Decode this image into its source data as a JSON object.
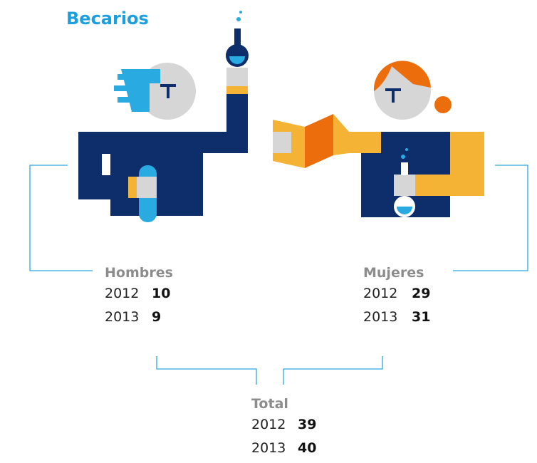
{
  "title": "Becarios",
  "groups": [
    {
      "label": "Hombres",
      "rows": [
        [
          "2012",
          10
        ],
        [
          "2013",
          9
        ]
      ]
    },
    {
      "label": "Mujeres",
      "rows": [
        [
          "2012",
          29
        ],
        [
          "2013",
          31
        ]
      ]
    },
    {
      "label": "Total",
      "rows": [
        [
          "2012",
          39
        ],
        [
          "2013",
          40
        ]
      ]
    }
  ]
}
